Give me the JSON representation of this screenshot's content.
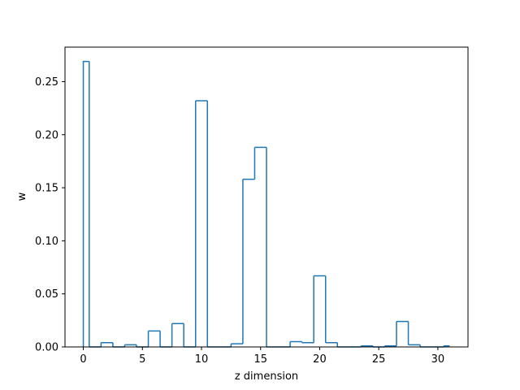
{
  "chart_data": {
    "type": "step-histogram",
    "xlabel": "z dimension",
    "ylabel": "w",
    "xlim": [
      -1.55,
      32.55
    ],
    "ylim": [
      0,
      0.2825
    ],
    "x_ticks": [
      0,
      5,
      10,
      15,
      20,
      25,
      30
    ],
    "x_tick_labels": [
      "0",
      "5",
      "10",
      "15",
      "20",
      "25",
      "30"
    ],
    "y_ticks": [
      0.0,
      0.05,
      0.1,
      0.15,
      0.2,
      0.25
    ],
    "y_tick_labels": [
      "0.00",
      "0.05",
      "0.10",
      "0.15",
      "0.20",
      "0.25"
    ],
    "grid": false,
    "legend": "none",
    "line_color": "#1f77b4",
    "categories": [
      0,
      1,
      2,
      3,
      4,
      5,
      6,
      7,
      8,
      9,
      10,
      11,
      12,
      13,
      14,
      15,
      16,
      17,
      18,
      19,
      20,
      21,
      22,
      23,
      24,
      25,
      26,
      27,
      28,
      29,
      30,
      31
    ],
    "values": [
      0.269,
      0.0,
      0.004,
      0.0,
      0.002,
      0.0,
      0.015,
      0.0,
      0.022,
      0.0,
      0.232,
      0.0,
      0.0,
      0.003,
      0.158,
      0.188,
      0.0,
      0.0,
      0.005,
      0.004,
      0.067,
      0.004,
      0.0,
      0.0,
      0.001,
      0.0,
      0.001,
      0.024,
      0.002,
      0.0,
      0.0,
      0.001
    ]
  }
}
